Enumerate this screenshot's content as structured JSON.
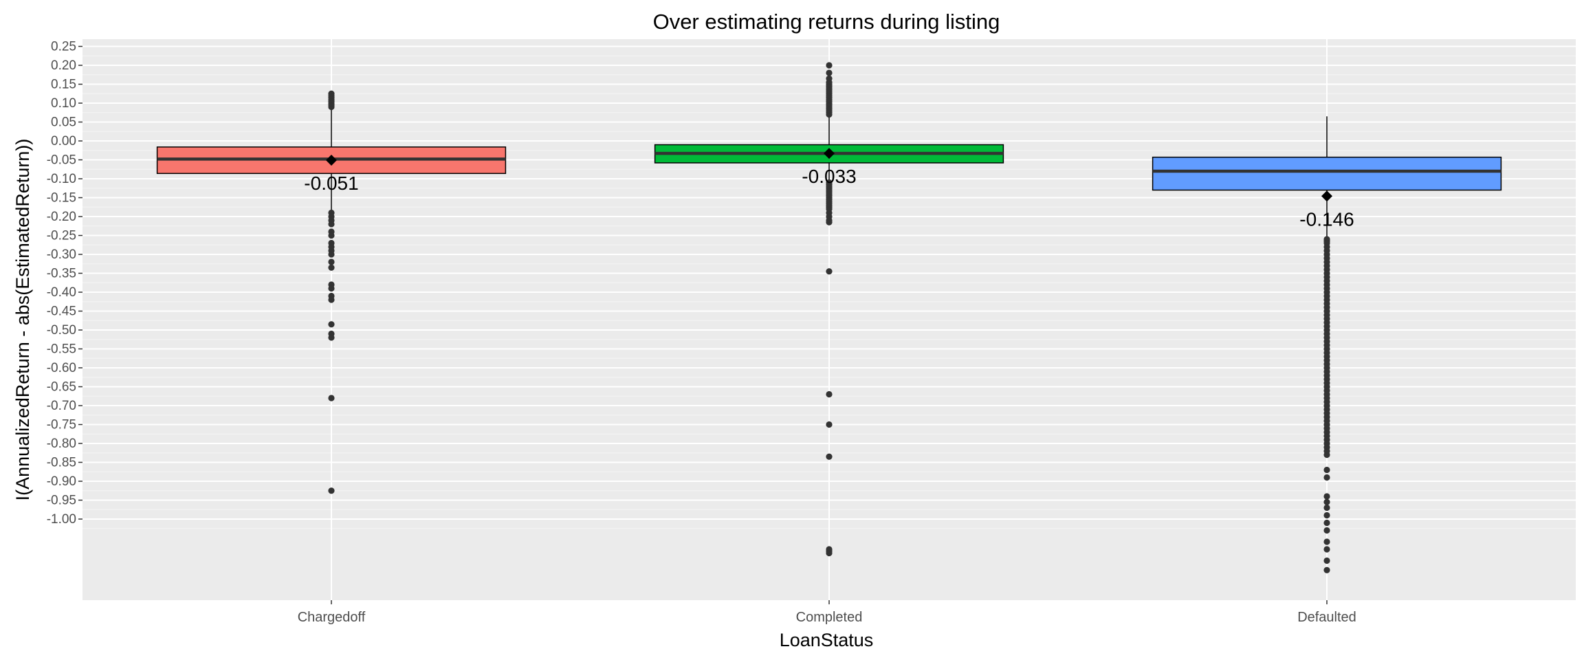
{
  "chart_data": {
    "type": "boxplot",
    "title": "Over estimating returns during listing",
    "xlabel": "LoanStatus",
    "ylabel": "I(AnnualizedReturn - abs(EstimatedReturn))",
    "ylim": [
      -1.23,
      0.27
    ],
    "yticks": [
      0.25,
      0.2,
      0.15,
      0.1,
      0.05,
      0.0,
      -0.05,
      -0.1,
      -0.15,
      -0.2,
      -0.25,
      -0.3,
      -0.35,
      -0.4,
      -0.45,
      -0.5,
      -0.55,
      -0.6,
      -0.65,
      -0.7,
      -0.75,
      -0.8,
      -0.85,
      -0.9,
      -0.95,
      -1.0
    ],
    "ytick_labels": [
      "0.25",
      "0.20",
      "0.15",
      "0.10",
      "0.05",
      "0.00",
      "-0.05",
      "-0.10",
      "-0.15",
      "-0.20",
      "-0.25",
      "-0.30",
      "-0.35",
      "-0.40",
      "-0.45",
      "-0.50",
      "-0.55",
      "-0.60",
      "-0.65",
      "-0.70",
      "-0.75",
      "-0.80",
      "-0.85",
      "-0.90",
      "-0.95",
      "-1.00"
    ],
    "grid": true,
    "legend": "none",
    "categories": [
      "Chargedoff",
      "Completed",
      "Defaulted"
    ],
    "boxes": [
      {
        "category": "Chargedoff",
        "color": "#F8766D",
        "q1": -0.086,
        "median": -0.048,
        "q3": -0.016,
        "whisker_low": -0.186,
        "whisker_high": 0.085,
        "mean": -0.051,
        "mean_label": "-0.051",
        "outliers_high": [
          0.09,
          0.095,
          0.1,
          0.105,
          0.11,
          0.115,
          0.12,
          0.125
        ],
        "outliers_low": [
          -0.19,
          -0.2,
          -0.21,
          -0.22,
          -0.24,
          -0.25,
          -0.27,
          -0.28,
          -0.29,
          -0.3,
          -0.32,
          -0.335,
          -0.38,
          -0.39,
          -0.41,
          -0.42,
          -0.485,
          -0.51,
          -0.52,
          -0.68,
          -0.925
        ]
      },
      {
        "category": "Completed",
        "color": "#00BA38",
        "q1": -0.058,
        "median": -0.033,
        "q3": -0.01,
        "whisker_low": -0.105,
        "whisker_high": 0.063,
        "mean": -0.033,
        "mean_label": "-0.033",
        "outliers_high": [
          0.07,
          0.075,
          0.08,
          0.085,
          0.09,
          0.095,
          0.1,
          0.105,
          0.11,
          0.115,
          0.12,
          0.125,
          0.13,
          0.135,
          0.14,
          0.145,
          0.15,
          0.155,
          0.165,
          0.18,
          0.2
        ],
        "outliers_low": [
          -0.11,
          -0.115,
          -0.12,
          -0.125,
          -0.13,
          -0.135,
          -0.14,
          -0.145,
          -0.15,
          -0.155,
          -0.16,
          -0.165,
          -0.17,
          -0.175,
          -0.18,
          -0.19,
          -0.2,
          -0.21,
          -0.215,
          -0.345,
          -0.67,
          -0.75,
          -0.835,
          -1.08,
          -1.085,
          -1.09
        ]
      },
      {
        "category": "Defaulted",
        "color": "#619CFF",
        "q1": -0.13,
        "median": -0.08,
        "q3": -0.043,
        "whisker_low": -0.258,
        "whisker_high": 0.065,
        "mean": -0.146,
        "mean_label": "-0.146",
        "outliers_high": [],
        "outliers_low": [
          -0.26,
          -0.265,
          -0.27,
          -0.28,
          -0.29,
          -0.3,
          -0.31,
          -0.32,
          -0.33,
          -0.34,
          -0.35,
          -0.36,
          -0.37,
          -0.38,
          -0.39,
          -0.4,
          -0.41,
          -0.42,
          -0.43,
          -0.44,
          -0.45,
          -0.46,
          -0.47,
          -0.48,
          -0.49,
          -0.5,
          -0.51,
          -0.52,
          -0.53,
          -0.54,
          -0.55,
          -0.56,
          -0.57,
          -0.58,
          -0.59,
          -0.6,
          -0.61,
          -0.62,
          -0.63,
          -0.64,
          -0.65,
          -0.66,
          -0.67,
          -0.68,
          -0.69,
          -0.7,
          -0.71,
          -0.72,
          -0.73,
          -0.74,
          -0.75,
          -0.76,
          -0.77,
          -0.78,
          -0.79,
          -0.8,
          -0.81,
          -0.82,
          -0.83,
          -0.87,
          -0.89,
          -0.94,
          -0.955,
          -0.97,
          -0.99,
          -1.01,
          -1.03,
          -1.06,
          -1.08,
          -1.11,
          -1.135
        ]
      }
    ]
  }
}
